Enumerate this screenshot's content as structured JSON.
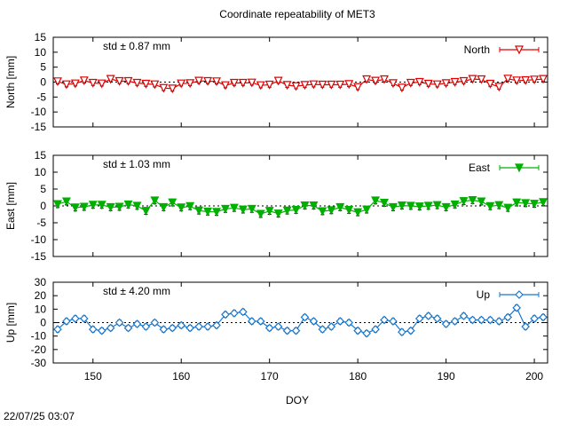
{
  "title": "Coordinate repeatability of MET3",
  "timestamp": "22/07/25 03:07",
  "chart_data": [
    {
      "type": "line",
      "name": "North",
      "ylabel": "North [mm]",
      "std_label": "std ± 0.87 mm",
      "color": "#e00000",
      "marker": "triangle-down-open",
      "legend": "North",
      "legend_position": "top-right",
      "ylim": [
        -15,
        15
      ],
      "yticks": [
        -15,
        -10,
        -5,
        0,
        5,
        10,
        15
      ],
      "xlim": [
        145.5,
        201.5
      ],
      "x": [
        146,
        147,
        148,
        149,
        150,
        151,
        152,
        153,
        154,
        155,
        156,
        157,
        158,
        159,
        160,
        161,
        162,
        163,
        164,
        165,
        166,
        167,
        168,
        169,
        170,
        171,
        172,
        173,
        174,
        175,
        176,
        177,
        178,
        179,
        180,
        181,
        182,
        183,
        184,
        185,
        186,
        187,
        188,
        189,
        190,
        191,
        192,
        193,
        194,
        195,
        196,
        197,
        198,
        199,
        200,
        201
      ],
      "y": [
        0.2,
        -0.8,
        -0.5,
        0.5,
        -0.3,
        -0.5,
        1.0,
        0.3,
        0.3,
        -0.3,
        -0.6,
        -0.8,
        -2.0,
        -2.2,
        -0.5,
        -0.4,
        0.4,
        0.3,
        0.2,
        -1.1,
        -0.3,
        -0.3,
        -0.2,
        -1.1,
        -0.9,
        0.4,
        -1.0,
        -1.4,
        -1.0,
        -0.8,
        -0.9,
        -0.9,
        -0.9,
        -0.7,
        -1.7,
        0.9,
        0.4,
        0.9,
        -0.4,
        -1.9,
        -0.3,
        0.0,
        -0.6,
        -0.8,
        -0.4,
        0.0,
        0.3,
        1.0,
        0.9,
        -0.6,
        -1.6,
        1.1,
        0.5,
        0.6,
        0.8,
        1.0
      ],
      "err": 0.8
    },
    {
      "type": "line",
      "name": "East",
      "ylabel": "East [mm]",
      "std_label": "std ± 1.03 mm",
      "color": "#00b000",
      "marker": "triangle-down-filled",
      "legend": "East",
      "legend_position": "top-right",
      "ylim": [
        -15,
        15
      ],
      "yticks": [
        -15,
        -10,
        -5,
        0,
        5,
        10,
        15
      ],
      "xlim": [
        145.5,
        201.5
      ],
      "x": [
        146,
        147,
        148,
        149,
        150,
        151,
        152,
        153,
        154,
        155,
        156,
        157,
        158,
        159,
        160,
        161,
        162,
        163,
        164,
        165,
        166,
        167,
        168,
        169,
        170,
        171,
        172,
        173,
        174,
        175,
        176,
        177,
        178,
        179,
        180,
        181,
        182,
        183,
        184,
        185,
        186,
        187,
        188,
        189,
        190,
        191,
        192,
        193,
        194,
        195,
        196,
        197,
        198,
        199,
        200,
        201
      ],
      "y": [
        0.5,
        1.3,
        -0.5,
        -0.3,
        0.3,
        0.3,
        -0.4,
        -0.3,
        0.4,
        0.0,
        -1.5,
        1.6,
        -0.4,
        1.0,
        -0.5,
        -0.1,
        -1.4,
        -1.7,
        -1.8,
        -0.9,
        -0.6,
        -1.1,
        -0.9,
        -2.4,
        -1.5,
        -2.3,
        -1.4,
        -1.2,
        0.1,
        0.1,
        -1.6,
        -1.3,
        -0.4,
        -1.2,
        -1.9,
        -1.1,
        1.6,
        0.9,
        -0.4,
        0.1,
        0.0,
        -0.2,
        0.0,
        0.2,
        -0.4,
        0.4,
        1.4,
        1.7,
        1.3,
        -0.1,
        0.2,
        -0.6,
        1.0,
        0.8,
        0.6,
        1.1
      ],
      "err": 1.0
    },
    {
      "type": "line",
      "name": "Up",
      "ylabel": "Up [mm]",
      "std_label": "std ± 4.20 mm",
      "color": "#1878d0",
      "marker": "diamond-open",
      "legend": "Up",
      "legend_position": "top-right",
      "ylim": [
        -30,
        30
      ],
      "yticks": [
        -30,
        -20,
        -10,
        0,
        10,
        20,
        30
      ],
      "xlim": [
        145.5,
        201.5
      ],
      "x": [
        146,
        147,
        148,
        149,
        150,
        151,
        152,
        153,
        154,
        155,
        156,
        157,
        158,
        159,
        160,
        161,
        162,
        163,
        164,
        165,
        166,
        167,
        168,
        169,
        170,
        171,
        172,
        173,
        174,
        175,
        176,
        177,
        178,
        179,
        180,
        181,
        182,
        183,
        184,
        185,
        186,
        187,
        188,
        189,
        190,
        191,
        192,
        193,
        194,
        195,
        196,
        197,
        198,
        199,
        200,
        201
      ],
      "y": [
        -5,
        1,
        3,
        3,
        -5,
        -6,
        -4,
        0,
        -4,
        -1,
        -3,
        0,
        -5,
        -4,
        -2,
        -4,
        -3,
        -3,
        -2,
        6,
        7,
        8,
        1,
        1,
        -4,
        -3,
        -6,
        -6,
        4,
        1,
        -5,
        -3,
        1,
        0,
        -6,
        -8,
        -5,
        2,
        1,
        -7,
        -6,
        3,
        5,
        3,
        -1,
        1,
        5,
        2,
        2,
        2,
        1,
        4,
        11,
        -3,
        3,
        4
      ],
      "err": 2.0
    }
  ],
  "x_axis": {
    "label": "DOY",
    "ticks": [
      150,
      160,
      170,
      180,
      190,
      200
    ]
  }
}
